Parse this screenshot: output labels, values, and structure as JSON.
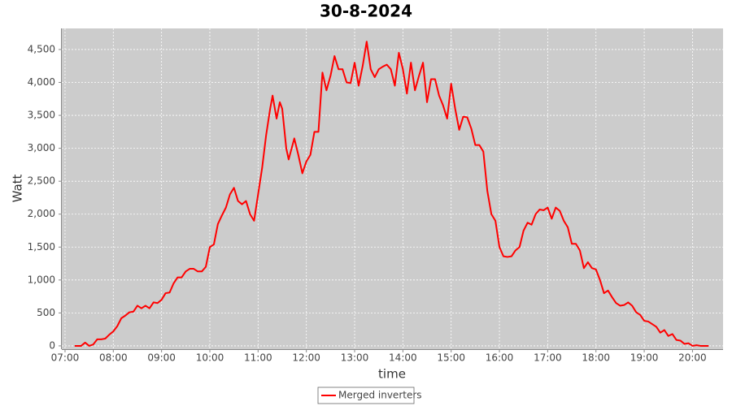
{
  "chart_data": {
    "type": "line",
    "title": "30-8-2024",
    "xlabel": "time",
    "ylabel": "Watt",
    "x": [
      "07:12",
      "07:15",
      "07:20",
      "07:25",
      "07:30",
      "07:35",
      "07:40",
      "07:45",
      "07:50",
      "07:55",
      "08:00",
      "08:05",
      "08:10",
      "08:15",
      "08:20",
      "08:25",
      "08:30",
      "08:35",
      "08:40",
      "08:45",
      "08:50",
      "08:55",
      "09:00",
      "09:05",
      "09:10",
      "09:15",
      "09:20",
      "09:25",
      "09:30",
      "09:35",
      "09:40",
      "09:45",
      "09:50",
      "09:55",
      "10:00",
      "10:05",
      "10:10",
      "10:15",
      "10:20",
      "10:25",
      "10:30",
      "10:35",
      "10:40",
      "10:45",
      "10:50",
      "10:55",
      "11:00",
      "11:05",
      "11:10",
      "11:15",
      "11:18",
      "11:23",
      "11:27",
      "11:30",
      "11:35",
      "11:38",
      "11:45",
      "11:50",
      "11:55",
      "12:00",
      "12:05",
      "12:10",
      "12:15",
      "12:20",
      "12:25",
      "12:30",
      "12:35",
      "12:40",
      "12:45",
      "12:50",
      "12:55",
      "13:00",
      "13:05",
      "13:10",
      "13:15",
      "13:20",
      "13:25",
      "13:30",
      "13:35",
      "13:40",
      "13:45",
      "13:50",
      "13:55",
      "14:00",
      "14:05",
      "14:10",
      "14:15",
      "14:20",
      "14:25",
      "14:30",
      "14:35",
      "14:40",
      "14:45",
      "14:50",
      "14:55",
      "15:00",
      "15:05",
      "15:10",
      "15:15",
      "15:20",
      "15:25",
      "15:30",
      "15:35",
      "15:40",
      "15:45",
      "15:50",
      "15:55",
      "16:00",
      "16:05",
      "16:10",
      "16:15",
      "16:20",
      "16:25",
      "16:30",
      "16:35",
      "16:40",
      "16:45",
      "16:50",
      "16:55",
      "17:00",
      "17:05",
      "17:10",
      "17:15",
      "17:20",
      "17:25",
      "17:30",
      "17:35",
      "17:40",
      "17:45",
      "17:50",
      "17:55",
      "18:00",
      "18:05",
      "18:10",
      "18:15",
      "18:20",
      "18:25",
      "18:30",
      "18:35",
      "18:40",
      "18:45",
      "18:50",
      "18:55",
      "19:00",
      "19:05",
      "19:10",
      "19:15",
      "19:20",
      "19:25",
      "19:30",
      "19:35",
      "19:40",
      "19:45",
      "19:50",
      "19:55",
      "20:00",
      "20:05",
      "20:10",
      "20:15",
      "20:20"
    ],
    "series": [
      {
        "name": "Merged inverters",
        "color": "#ff0000",
        "values": [
          0,
          0,
          0,
          50,
          0,
          20,
          100,
          100,
          110,
          170,
          220,
          300,
          420,
          460,
          510,
          520,
          610,
          570,
          610,
          570,
          660,
          650,
          700,
          800,
          810,
          950,
          1040,
          1040,
          1130,
          1170,
          1170,
          1130,
          1130,
          1200,
          1500,
          1540,
          1850,
          1980,
          2100,
          2300,
          2400,
          2200,
          2150,
          2200,
          2000,
          1900,
          2300,
          2700,
          3200,
          3600,
          3800,
          3450,
          3700,
          3600,
          3000,
          2830,
          3150,
          2900,
          2620,
          2800,
          2900,
          3250,
          3250,
          4150,
          3880,
          4100,
          4400,
          4200,
          4200,
          4000,
          3990,
          4300,
          3950,
          4250,
          4620,
          4200,
          4080,
          4200,
          4240,
          4270,
          4200,
          3950,
          4450,
          4200,
          3830,
          4300,
          3880,
          4100,
          4300,
          3700,
          4050,
          4050,
          3800,
          3650,
          3450,
          3980,
          3600,
          3280,
          3480,
          3470,
          3300,
          3050,
          3050,
          2950,
          2350,
          2000,
          1900,
          1500,
          1360,
          1350,
          1360,
          1450,
          1500,
          1750,
          1870,
          1840,
          2000,
          2070,
          2060,
          2100,
          1930,
          2100,
          2050,
          1900,
          1800,
          1550,
          1550,
          1450,
          1180,
          1270,
          1180,
          1160,
          1000,
          800,
          840,
          740,
          650,
          610,
          620,
          660,
          610,
          510,
          470,
          380,
          370,
          330,
          290,
          200,
          240,
          150,
          180,
          90,
          80,
          30,
          40,
          0,
          10,
          0,
          0,
          0
        ]
      }
    ],
    "xlim": [
      "06:56",
      "20:38"
    ],
    "xticks": [
      "07:00",
      "08:00",
      "09:00",
      "10:00",
      "11:00",
      "12:00",
      "13:00",
      "14:00",
      "15:00",
      "16:00",
      "17:00",
      "18:00",
      "19:00",
      "20:00"
    ],
    "ylim": [
      -50,
      4820
    ],
    "yticks": [
      0,
      500,
      {
        "value": 1000,
        "label": "1,000"
      },
      {
        "value": 1500,
        "label": "1,500"
      },
      {
        "value": 2000,
        "label": "2,000"
      },
      {
        "value": 2500,
        "label": "2,500"
      },
      {
        "value": 3000,
        "label": "3,000"
      },
      {
        "value": 3500,
        "label": "3,500"
      },
      {
        "value": 4000,
        "label": "4,000"
      },
      {
        "value": 4500,
        "label": "4,500"
      }
    ],
    "grid": true,
    "legend": "bottom"
  }
}
